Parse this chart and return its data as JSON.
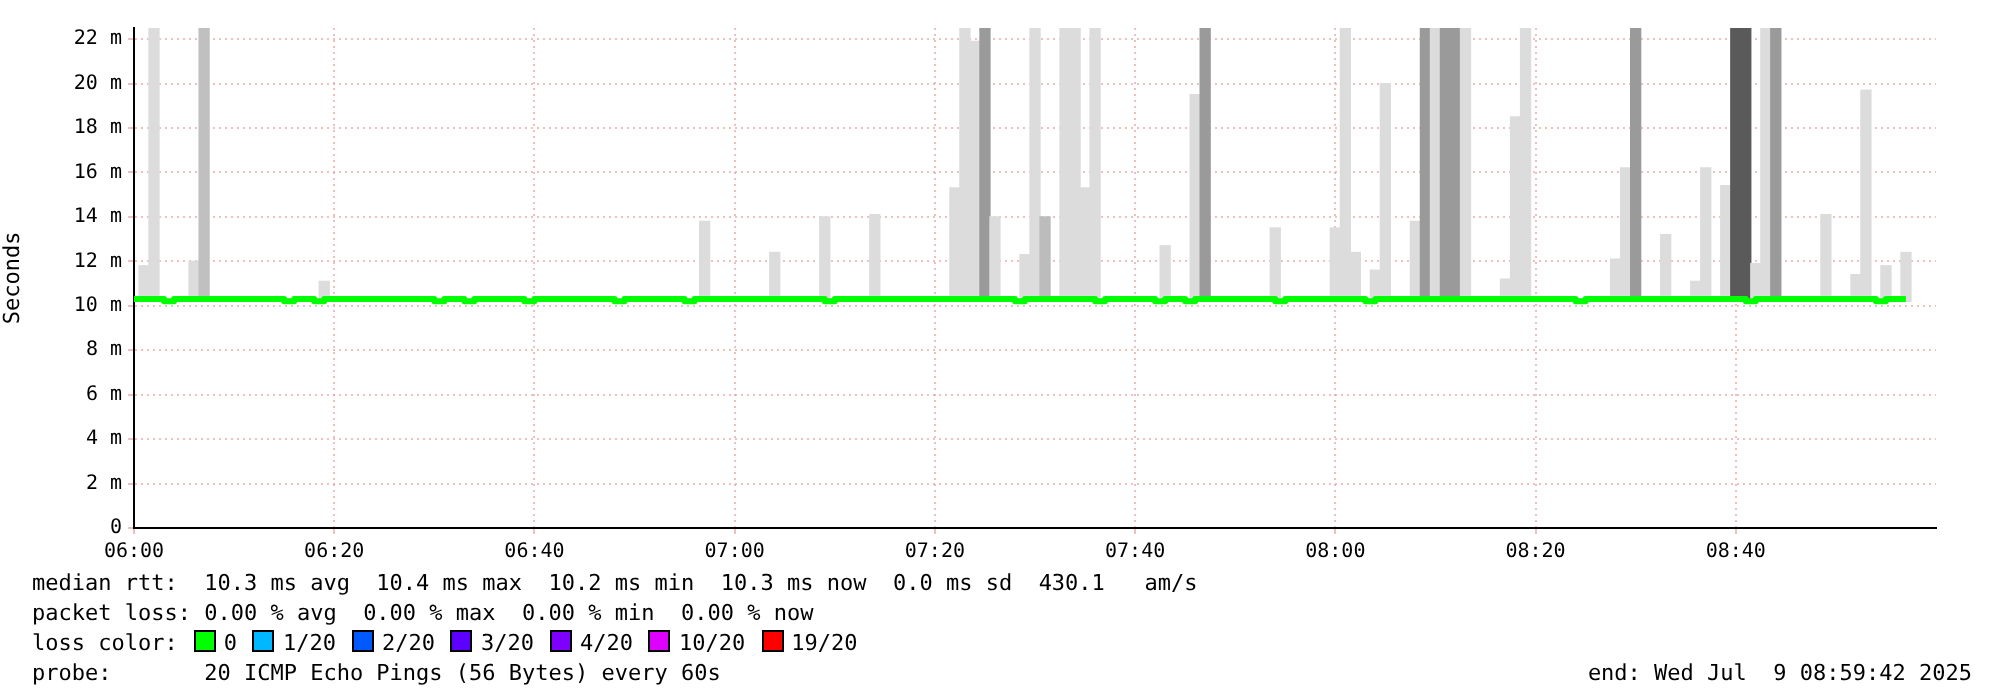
{
  "chart_data": {
    "type": "bar",
    "ylabel": "Seconds",
    "xlim": [
      6,
      9
    ],
    "xticks": [
      {
        "value": 6,
        "label": "06:00"
      },
      {
        "value": 6.3333,
        "label": "06:20"
      },
      {
        "value": 6.6667,
        "label": "06:40"
      },
      {
        "value": 7,
        "label": "07:00"
      },
      {
        "value": 7.3333,
        "label": "07:20"
      },
      {
        "value": 7.6667,
        "label": "07:40"
      },
      {
        "value": 8,
        "label": "08:00"
      },
      {
        "value": 8.3333,
        "label": "08:20"
      },
      {
        "value": 8.6667,
        "label": "08:40"
      }
    ],
    "ylim": [
      0,
      22.5
    ],
    "yticks": [
      0,
      {
        "value": 2,
        "label": "2 m"
      },
      {
        "value": 4,
        "label": "4 m"
      },
      {
        "value": 6,
        "label": "6 m"
      },
      {
        "value": 8,
        "label": "8 m"
      },
      {
        "value": 10,
        "label": "10 m"
      },
      {
        "value": 12,
        "label": "12 m"
      },
      {
        "value": 14,
        "label": "14 m"
      },
      {
        "value": 16,
        "label": "16 m"
      },
      {
        "value": 18,
        "label": "18 m"
      },
      {
        "value": 20,
        "label": "20 m"
      },
      {
        "value": 22,
        "label": "22 m"
      }
    ],
    "grid": true,
    "legend": false,
    "series": [
      {
        "x": [
          6.0167,
          6.0333,
          6.1,
          6.1167,
          6.3167,
          6.95,
          7.0667,
          7.15,
          7.2333,
          7.3667,
          7.3833,
          7.4,
          7.4167,
          7.4333,
          7.4833,
          7.5,
          7.5167,
          7.55,
          7.5667,
          7.5833,
          7.6,
          7.7167,
          7.7667,
          7.7833,
          7.9,
          8,
          8.0167,
          8.0333,
          8.0667,
          8.0833,
          8.1333,
          8.15,
          8.1667,
          8.1833,
          8.2,
          8.2167,
          8.2833,
          8.3,
          8.3167,
          8.4667,
          8.4833,
          8.5,
          8.55,
          8.6,
          8.6167,
          8.65,
          8.6667,
          8.6833,
          8.7,
          8.7167,
          8.7333,
          8.8167,
          8.8667,
          8.8833,
          8.9167,
          8.95
        ],
        "base": [
          10.2,
          10.2,
          10.2,
          10.2,
          10.2,
          10.2,
          10.2,
          10.2,
          10.2,
          10.2,
          10.2,
          10.2,
          10.2,
          10.2,
          10.2,
          10.2,
          10.2,
          10.2,
          10.2,
          10.2,
          10.2,
          10.2,
          10.2,
          10.2,
          10.2,
          10.2,
          10.2,
          10.2,
          10.2,
          10.2,
          10.2,
          10.2,
          10.2,
          10.2,
          10.2,
          10.2,
          10.2,
          10.2,
          10.2,
          10.2,
          10.2,
          10.2,
          10.2,
          10.2,
          10.2,
          10.2,
          10.2,
          10.2,
          10.2,
          10.2,
          10.2,
          10.2,
          10.2,
          10.2,
          10.2,
          10.2
        ],
        "values": [
          1.6,
          12.3,
          1.8,
          12.3,
          0.9,
          3.6,
          2.2,
          3.8,
          3.9,
          5.1,
          12.3,
          11.7,
          12.3,
          3.8,
          2.1,
          12.3,
          3.8,
          12.3,
          12.3,
          5.1,
          12.3,
          2.5,
          9.3,
          12.3,
          3.3,
          3.3,
          12.3,
          2.2,
          1.4,
          9.8,
          3.6,
          12.3,
          12.3,
          12.3,
          12.3,
          12.3,
          1,
          8.3,
          12.3,
          1.9,
          6,
          12.3,
          3,
          0.9,
          6,
          5.2,
          12.3,
          12.3,
          1.7,
          12.3,
          12.3,
          3.9,
          1.2,
          9.5,
          1.6,
          2.2
        ],
        "colors": [
          "#dcdcdc",
          "#dcdcdc",
          "#dcdcdc",
          "#c0c0c0",
          "#dcdcdc",
          "#dcdcdc",
          "#dcdcdc",
          "#dcdcdc",
          "#dcdcdc",
          "#dcdcdc",
          "#dcdcdc",
          "#dcdcdc",
          "#9a9a9a",
          "#dcdcdc",
          "#dcdcdc",
          "#dcdcdc",
          "#bcbcbc",
          "#dcdcdc",
          "#dcdcdc",
          "#dcdcdc",
          "#dcdcdc",
          "#dcdcdc",
          "#dcdcdc",
          "#9a9a9a",
          "#dcdcdc",
          "#dcdcdc",
          "#dcdcdc",
          "#dcdcdc",
          "#dcdcdc",
          "#dcdcdc",
          "#dcdcdc",
          "#9a9a9a",
          "#dcdcdc",
          "#9a9a9a",
          "#9a9a9a",
          "#dcdcdc",
          "#dcdcdc",
          "#dcdcdc",
          "#dcdcdc",
          "#dcdcdc",
          "#dcdcdc",
          "#9a9a9a",
          "#dcdcdc",
          "#dcdcdc",
          "#dcdcdc",
          "#dcdcdc",
          "#5a5a5a",
          "#5a5a5a",
          "#dcdcdc",
          "#dcdcdc",
          "#9a9a9a",
          "#dcdcdc",
          "#dcdcdc",
          "#dcdcdc",
          "#dcdcdc",
          "#dcdcdc"
        ]
      },
      {
        "type": "step",
        "color": "#00ff00",
        "x": [
          6,
          6.05,
          6.0667,
          6.25,
          6.2667,
          6.3,
          6.3167,
          6.5,
          6.5167,
          6.55,
          6.5667,
          6.65,
          6.6667,
          6.8,
          6.8167,
          6.9167,
          6.9333,
          7.15,
          7.1667,
          7.4667,
          7.4833,
          7.6,
          7.6167,
          7.7,
          7.7167,
          7.75,
          7.7667,
          7.9,
          7.9167,
          8.05,
          8.0667,
          8.4,
          8.4167,
          8.6833,
          8.7,
          8.9,
          8.9167,
          8.95
        ],
        "values": [
          10.3,
          10.2,
          10.3,
          10.2,
          10.3,
          10.2,
          10.3,
          10.2,
          10.3,
          10.2,
          10.3,
          10.2,
          10.3,
          10.2,
          10.3,
          10.2,
          10.3,
          10.2,
          10.3,
          10.2,
          10.3,
          10.2,
          10.3,
          10.2,
          10.3,
          10.2,
          10.3,
          10.2,
          10.3,
          10.2,
          10.3,
          10.2,
          10.3,
          10.2,
          10.3,
          10.2,
          10.3,
          10.3
        ]
      }
    ],
    "annotations": [
      "median rtt:  10.3 ms avg  10.4 ms max  10.2 ms min  10.3 ms now  0.0 ms sd  430.1   am/s",
      "packet loss: 0.00 % avg  0.00 % max  0.00 % min  0.00 % now",
      "loss color:",
      "0",
      "1/20",
      "2/20",
      "3/20",
      "4/20",
      "10/20",
      "19/20",
      "probe:       20 ICMP Echo Pings (56 Bytes) every 60s",
      "end: Wed Jul  9 08:59:42 2025"
    ]
  }
}
